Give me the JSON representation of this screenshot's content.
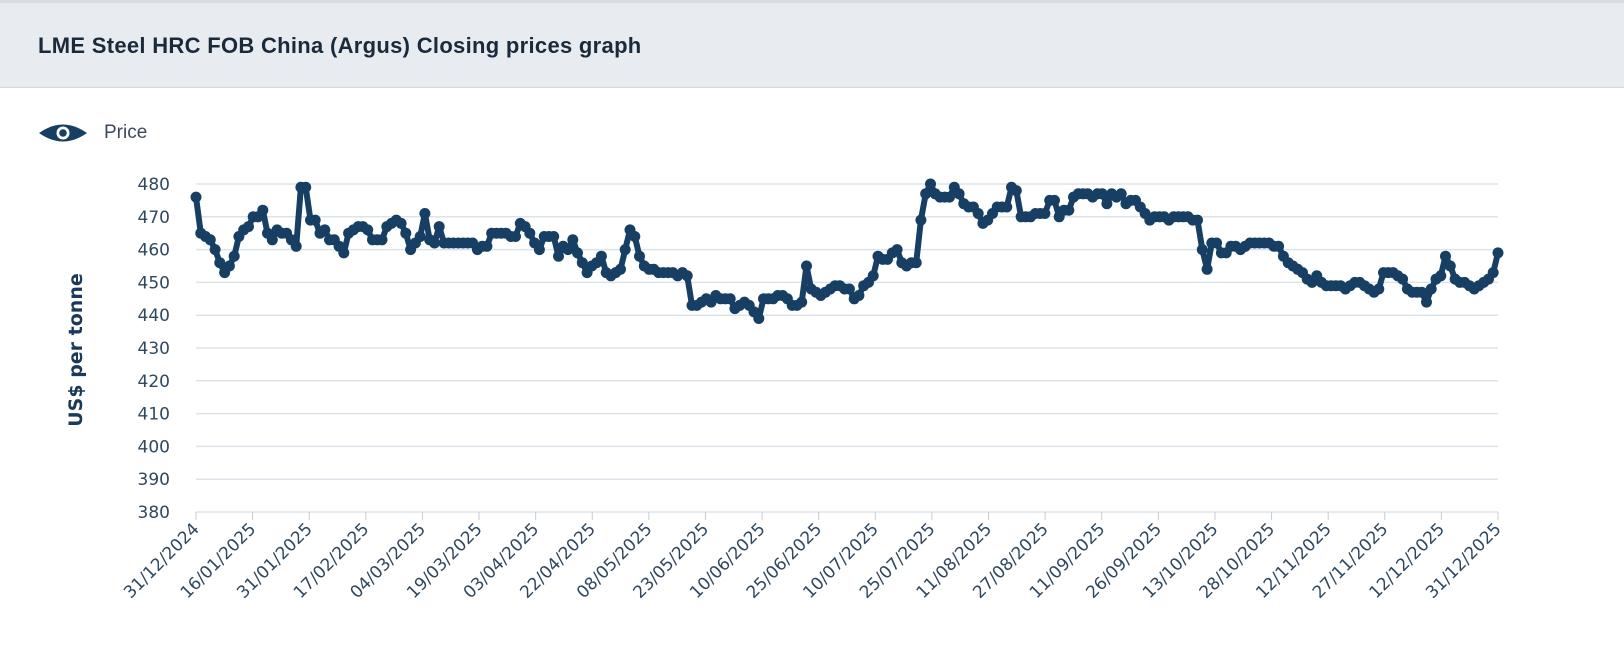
{
  "header": {
    "title": "LME Steel HRC FOB China (Argus) Closing prices graph"
  },
  "legend": {
    "items": [
      {
        "icon": "eye-icon",
        "label": "Price"
      }
    ]
  },
  "colors": {
    "series": "#173f63",
    "grid": "#dde3ea",
    "axis_text": "#2f4860"
  },
  "chart_data": {
    "type": "line",
    "title": "LME Steel HRC FOB China (Argus) Closing prices graph",
    "ylabel": "US$ per tonne",
    "xlabel": "",
    "ylim": [
      380,
      480
    ],
    "yticks": [
      480,
      470,
      460,
      450,
      440,
      430,
      420,
      410,
      400,
      390,
      380
    ],
    "xticks": [
      "31/12/2024",
      "16/01/2025",
      "31/01/2025",
      "17/02/2025",
      "04/03/2025",
      "19/03/2025",
      "03/04/2025",
      "22/04/2025",
      "08/05/2025",
      "23/05/2025",
      "10/06/2025",
      "25/06/2025",
      "10/07/2025",
      "25/07/2025",
      "11/08/2025",
      "27/08/2025",
      "11/09/2025",
      "26/09/2025",
      "13/10/2025",
      "28/10/2025",
      "12/11/2025",
      "27/11/2025",
      "12/12/2025",
      "31/12/2025"
    ],
    "grid": true,
    "legend_position": "top-left",
    "series": [
      {
        "name": "Price",
        "values": [
          476,
          465,
          464,
          463,
          460,
          456,
          453,
          455,
          458,
          464,
          466,
          467,
          470,
          470,
          472,
          465,
          463,
          466,
          465,
          465,
          463,
          461,
          479,
          479,
          469,
          469,
          465,
          466,
          463,
          463,
          461,
          459,
          465,
          466,
          467,
          467,
          466,
          463,
          463,
          463,
          467,
          468,
          469,
          468,
          465,
          460,
          462,
          464,
          471,
          463,
          462,
          467,
          462,
          462,
          462,
          462,
          462,
          462,
          462,
          460,
          461,
          461,
          465,
          465,
          465,
          465,
          464,
          464,
          468,
          467,
          465,
          462,
          460,
          464,
          464,
          464,
          458,
          461,
          460,
          463,
          459,
          456,
          453,
          455,
          456,
          458,
          453,
          452,
          453,
          454,
          460,
          466,
          464,
          458,
          455,
          454,
          454,
          453,
          453,
          453,
          453,
          452,
          453,
          452,
          443,
          443,
          444,
          445,
          444,
          446,
          445,
          445,
          445,
          442,
          443,
          444,
          443,
          441,
          439,
          445,
          445,
          445,
          446,
          446,
          445,
          443,
          443,
          444,
          455,
          448,
          447,
          446,
          447,
          448,
          449,
          449,
          448,
          448,
          445,
          446,
          449,
          450,
          452,
          458,
          457,
          457,
          459,
          460,
          456,
          455,
          456,
          456,
          469,
          477,
          480,
          477,
          476,
          476,
          476,
          479,
          477,
          474,
          473,
          473,
          471,
          468,
          469,
          471,
          473,
          473,
          473,
          479,
          478,
          470,
          470,
          470,
          471,
          471,
          471,
          475,
          475,
          470,
          472,
          472,
          476,
          477,
          477,
          477,
          476,
          477,
          477,
          474,
          477,
          476,
          477,
          474,
          475,
          475,
          473,
          471,
          469,
          470,
          470,
          470,
          469,
          470,
          470,
          470,
          470,
          469,
          469,
          460,
          454,
          462,
          462,
          459,
          459,
          461,
          461,
          460,
          461,
          462,
          462,
          462,
          462,
          462,
          461,
          461,
          458,
          456,
          455,
          454,
          453,
          451,
          450,
          452,
          450,
          449,
          449,
          449,
          449,
          448,
          449,
          450,
          450,
          449,
          448,
          447,
          448,
          453,
          453,
          453,
          452,
          451,
          448,
          447,
          447,
          447,
          444,
          448,
          451,
          452,
          458,
          455,
          451,
          450,
          450,
          449,
          448,
          449,
          450,
          451,
          453,
          459
        ]
      }
    ]
  }
}
